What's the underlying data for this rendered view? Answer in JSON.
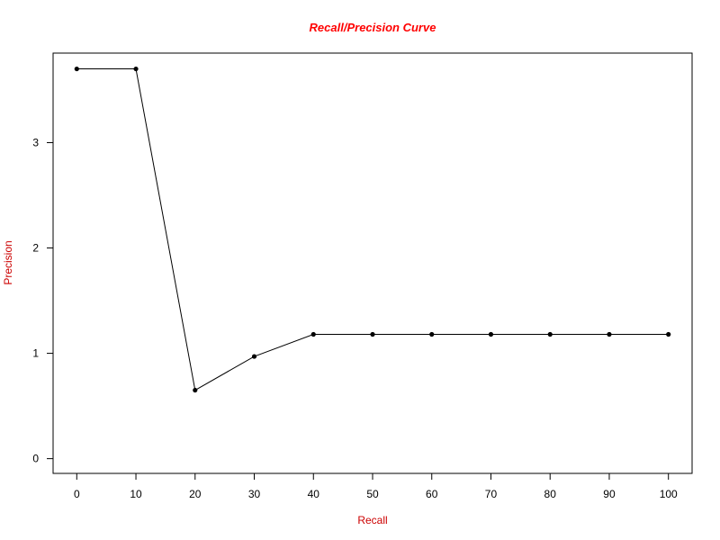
{
  "chart_data": {
    "type": "line",
    "title": "Recall/Precision Curve",
    "xlabel": "Recall",
    "ylabel": "Precision",
    "x": [
      0,
      10,
      20,
      30,
      40,
      50,
      60,
      70,
      80,
      90,
      100
    ],
    "series": [
      {
        "values": [
          3.7,
          3.7,
          0.65,
          0.97,
          1.18,
          1.18,
          1.18,
          1.18,
          1.18,
          1.18,
          1.18
        ]
      }
    ],
    "xticks": [
      "0",
      "10",
      "20",
      "30",
      "40",
      "50",
      "60",
      "70",
      "80",
      "90",
      "100"
    ],
    "yticks": [
      "0",
      "1",
      "2",
      "3"
    ],
    "xlim": [
      -4,
      104
    ],
    "ylim": [
      -0.14,
      3.85
    ],
    "grid": false,
    "legend": "none",
    "colors": {
      "title": "#ff0000",
      "labels": "#cc0000",
      "line": "#000000"
    }
  }
}
